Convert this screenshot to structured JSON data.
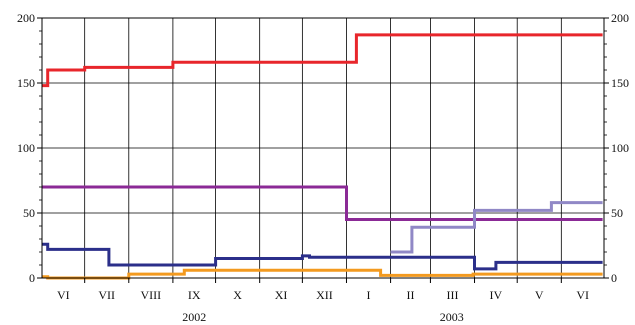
{
  "chart_data": {
    "type": "line",
    "step": true,
    "title": "",
    "xlabel": "",
    "ylabel": "",
    "ylim": [
      0,
      200
    ],
    "y_ticks": [
      0,
      50,
      100,
      150,
      200
    ],
    "y_ticks_both_sides": true,
    "grid": true,
    "x_start": "2002-06-01",
    "x_end": "2003-06-30",
    "months": [
      {
        "label": "VI",
        "start": "2002-06-01"
      },
      {
        "label": "VII",
        "start": "2002-07-01"
      },
      {
        "label": "VIII",
        "start": "2002-08-01"
      },
      {
        "label": "IX",
        "start": "2002-09-01"
      },
      {
        "label": "X",
        "start": "2002-10-01"
      },
      {
        "label": "XI",
        "start": "2002-11-01"
      },
      {
        "label": "XII",
        "start": "2002-12-01"
      },
      {
        "label": "I",
        "start": "2003-01-01"
      },
      {
        "label": "II",
        "start": "2003-02-01"
      },
      {
        "label": "III",
        "start": "2003-03-01"
      },
      {
        "label": "IV",
        "start": "2003-04-01"
      },
      {
        "label": "V",
        "start": "2003-05-01"
      },
      {
        "label": "VI",
        "start": "2003-06-01"
      }
    ],
    "years": [
      {
        "label": "2002",
        "center": "2002-09-16"
      },
      {
        "label": "2003",
        "center": "2003-03-16"
      }
    ],
    "series": [
      {
        "color": "#e8262b",
        "points": [
          [
            "2002-06-01",
            148
          ],
          [
            "2002-06-05",
            160
          ],
          [
            "2002-07-01",
            162
          ],
          [
            "2002-09-01",
            166
          ],
          [
            "2003-01-08",
            187
          ],
          [
            "2003-06-30",
            187
          ]
        ]
      },
      {
        "color": "#8b2a96",
        "points": [
          [
            "2002-06-01",
            70
          ],
          [
            "2003-01-01",
            45
          ],
          [
            "2003-06-30",
            45
          ]
        ]
      },
      {
        "color": "#9088c6",
        "points": [
          [
            "2003-02-01",
            20
          ],
          [
            "2003-02-16",
            39
          ],
          [
            "2003-04-01",
            52
          ],
          [
            "2003-05-25",
            58
          ],
          [
            "2003-06-30",
            58
          ]
        ]
      },
      {
        "color": "#2b2f8a",
        "points": [
          [
            "2002-06-01",
            26
          ],
          [
            "2002-06-05",
            22
          ],
          [
            "2002-07-18",
            10
          ],
          [
            "2002-10-01",
            15
          ],
          [
            "2002-12-01",
            17
          ],
          [
            "2002-12-06",
            16
          ],
          [
            "2003-04-01",
            7
          ],
          [
            "2003-04-16",
            12
          ],
          [
            "2003-06-30",
            12
          ]
        ]
      },
      {
        "color": "#f39a1f",
        "points": [
          [
            "2002-06-01",
            1
          ],
          [
            "2002-06-05",
            0
          ],
          [
            "2002-08-01",
            3
          ],
          [
            "2002-09-09",
            6
          ],
          [
            "2003-01-25",
            2
          ],
          [
            "2003-03-31",
            3
          ],
          [
            "2003-06-30",
            3
          ]
        ]
      }
    ]
  }
}
